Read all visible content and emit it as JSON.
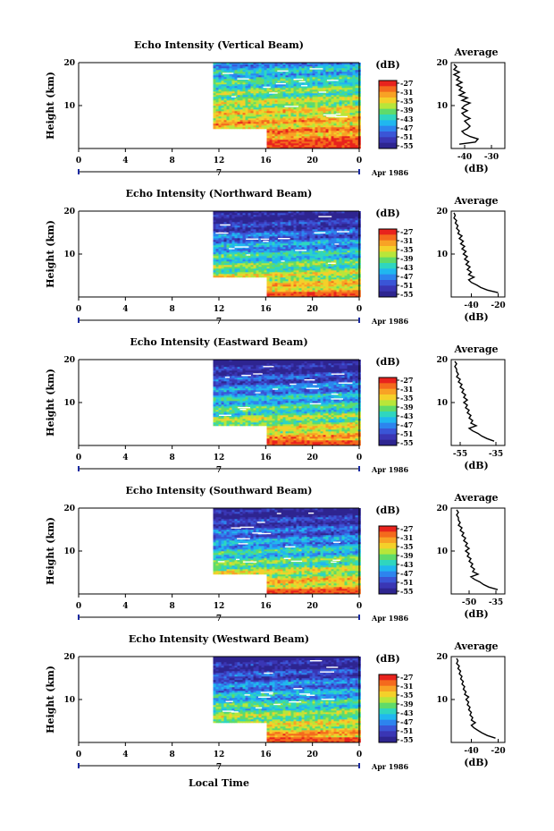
{
  "chart_data": [
    {
      "type": "heatmap",
      "title": "Echo Intensity (Vertical Beam)",
      "ylabel": "Height (km)",
      "yticks": [
        "20",
        "10"
      ],
      "ylim": [
        0,
        20
      ],
      "xticks": [
        "0",
        "4",
        "8",
        "12",
        "16",
        "20",
        "0"
      ],
      "xlim": [
        0,
        24
      ],
      "date_marker": "7",
      "date_label": "Apr 1986",
      "colorbar": {
        "unit": "(dB)",
        "ticks": [
          "-27",
          "-31",
          "-35",
          "-39",
          "-43",
          "-47",
          "-51",
          "-55"
        ]
      },
      "data_start_hour": 11.5,
      "profile": {
        "title": "Average",
        "xlabel": "(dB)",
        "xticks": [
          "-40",
          "-30"
        ],
        "xlim": [
          -45,
          -25
        ],
        "yticks": [
          "20",
          "10"
        ],
        "points": [
          [
            -42,
            1.0
          ],
          [
            -36,
            1.5
          ],
          [
            -35,
            2.2
          ],
          [
            -38,
            2.8
          ],
          [
            -40,
            3.4
          ],
          [
            -41,
            4.0
          ],
          [
            -39,
            4.6
          ],
          [
            -38,
            5.2
          ],
          [
            -39,
            5.8
          ],
          [
            -40,
            6.4
          ],
          [
            -38,
            7.0
          ],
          [
            -40,
            7.6
          ],
          [
            -41,
            8.2
          ],
          [
            -39,
            8.8
          ],
          [
            -41,
            9.4
          ],
          [
            -40,
            10.0
          ],
          [
            -38,
            10.6
          ],
          [
            -41,
            11.2
          ],
          [
            -39,
            11.8
          ],
          [
            -42,
            12.4
          ],
          [
            -40,
            13.0
          ],
          [
            -42,
            13.6
          ],
          [
            -41,
            14.2
          ],
          [
            -43,
            14.8
          ],
          [
            -41,
            15.4
          ],
          [
            -43,
            16.0
          ],
          [
            -42,
            16.6
          ],
          [
            -44,
            17.2
          ],
          [
            -42,
            17.8
          ],
          [
            -44,
            18.4
          ],
          [
            -43,
            19.0
          ],
          [
            -44,
            19.6
          ]
        ]
      }
    },
    {
      "type": "heatmap",
      "title": "Echo Intensity (Northward Beam)",
      "ylabel": "Height (km)",
      "yticks": [
        "20",
        "10"
      ],
      "ylim": [
        0,
        20
      ],
      "xticks": [
        "0",
        "4",
        "8",
        "12",
        "16",
        "20",
        "0"
      ],
      "xlim": [
        0,
        24
      ],
      "date_marker": "7",
      "date_label": "Apr 1986",
      "colorbar": {
        "unit": "(dB)",
        "ticks": [
          "-27",
          "-31",
          "-35",
          "-39",
          "-43",
          "-47",
          "-51",
          "-55"
        ]
      },
      "data_start_hour": 11.5,
      "profile": {
        "title": "Average",
        "xlabel": "(dB)",
        "xticks": [
          "-40",
          "-20"
        ],
        "xlim": [
          -55,
          -15
        ],
        "yticks": [
          "20",
          "10"
        ],
        "points": [
          [
            -20,
            1.0
          ],
          [
            -28,
            1.6
          ],
          [
            -33,
            2.2
          ],
          [
            -36,
            2.8
          ],
          [
            -40,
            3.4
          ],
          [
            -42,
            4.0
          ],
          [
            -38,
            4.6
          ],
          [
            -42,
            5.2
          ],
          [
            -40,
            5.8
          ],
          [
            -43,
            6.4
          ],
          [
            -41,
            7.0
          ],
          [
            -44,
            7.6
          ],
          [
            -42,
            8.2
          ],
          [
            -45,
            8.8
          ],
          [
            -43,
            9.4
          ],
          [
            -46,
            10.0
          ],
          [
            -44,
            10.6
          ],
          [
            -47,
            11.2
          ],
          [
            -45,
            11.8
          ],
          [
            -48,
            12.4
          ],
          [
            -46,
            13.0
          ],
          [
            -49,
            13.6
          ],
          [
            -47,
            14.2
          ],
          [
            -50,
            14.8
          ],
          [
            -49,
            15.4
          ],
          [
            -51,
            16.0
          ],
          [
            -50,
            16.6
          ],
          [
            -52,
            17.2
          ],
          [
            -51,
            17.8
          ],
          [
            -53,
            18.4
          ],
          [
            -52,
            19.0
          ],
          [
            -53,
            19.6
          ]
        ]
      }
    },
    {
      "type": "heatmap",
      "title": "Echo Intensity (Eastward Beam)",
      "ylabel": "Height (km)",
      "yticks": [
        "20",
        "10"
      ],
      "ylim": [
        0,
        20
      ],
      "xticks": [
        "0",
        "4",
        "8",
        "12",
        "16",
        "20",
        "0"
      ],
      "xlim": [
        0,
        24
      ],
      "date_marker": "7",
      "date_label": "Apr 1986",
      "colorbar": {
        "unit": "(dB)",
        "ticks": [
          "-27",
          "-31",
          "-35",
          "-39",
          "-43",
          "-47",
          "-51",
          "-55"
        ]
      },
      "data_start_hour": 11.5,
      "profile": {
        "title": "Average",
        "xlabel": "(dB)",
        "xticks": [
          "-55",
          "-35"
        ],
        "xlim": [
          -60,
          -30
        ],
        "yticks": [
          "20",
          "10"
        ],
        "points": [
          [
            -36,
            1.0
          ],
          [
            -40,
            1.6
          ],
          [
            -43,
            2.2
          ],
          [
            -45,
            2.8
          ],
          [
            -48,
            3.4
          ],
          [
            -50,
            4.0
          ],
          [
            -46,
            4.6
          ],
          [
            -49,
            5.2
          ],
          [
            -48,
            5.8
          ],
          [
            -50,
            6.4
          ],
          [
            -49,
            7.0
          ],
          [
            -51,
            7.6
          ],
          [
            -50,
            8.2
          ],
          [
            -52,
            8.8
          ],
          [
            -51,
            9.4
          ],
          [
            -53,
            10.0
          ],
          [
            -51,
            10.6
          ],
          [
            -53,
            11.2
          ],
          [
            -52,
            11.8
          ],
          [
            -54,
            12.4
          ],
          [
            -53,
            13.0
          ],
          [
            -55,
            13.6
          ],
          [
            -54,
            14.2
          ],
          [
            -56,
            14.8
          ],
          [
            -55,
            15.4
          ],
          [
            -57,
            16.0
          ],
          [
            -56,
            16.6
          ],
          [
            -57,
            17.2
          ],
          [
            -57,
            17.8
          ],
          [
            -58,
            18.4
          ],
          [
            -57,
            19.0
          ],
          [
            -58,
            19.6
          ]
        ]
      }
    },
    {
      "type": "heatmap",
      "title": "Echo Intensity (Southward Beam)",
      "ylabel": "Height (km)",
      "yticks": [
        "20",
        "10"
      ],
      "ylim": [
        0,
        20
      ],
      "xticks": [
        "0",
        "4",
        "8",
        "12",
        "16",
        "20",
        "0"
      ],
      "xlim": [
        0,
        24
      ],
      "date_marker": "7",
      "date_label": "Apr 1986",
      "colorbar": {
        "unit": "(dB)",
        "ticks": [
          "-27",
          "-31",
          "-35",
          "-39",
          "-43",
          "-47",
          "-51",
          "-55"
        ]
      },
      "data_start_hour": 11.5,
      "profile": {
        "title": "Average",
        "xlabel": "(dB)",
        "xticks": [
          "-50",
          "-35"
        ],
        "xlim": [
          -60,
          -30
        ],
        "yticks": [
          "20",
          "10"
        ],
        "points": [
          [
            -34,
            1.0
          ],
          [
            -39,
            1.6
          ],
          [
            -42,
            2.2
          ],
          [
            -44,
            2.8
          ],
          [
            -47,
            3.4
          ],
          [
            -49,
            4.0
          ],
          [
            -45,
            4.6
          ],
          [
            -48,
            5.2
          ],
          [
            -47,
            5.8
          ],
          [
            -49,
            6.4
          ],
          [
            -48,
            7.0
          ],
          [
            -50,
            7.6
          ],
          [
            -49,
            8.2
          ],
          [
            -51,
            8.8
          ],
          [
            -50,
            9.4
          ],
          [
            -52,
            10.0
          ],
          [
            -50,
            10.6
          ],
          [
            -52,
            11.2
          ],
          [
            -51,
            11.8
          ],
          [
            -53,
            12.4
          ],
          [
            -52,
            13.0
          ],
          [
            -54,
            13.6
          ],
          [
            -53,
            14.2
          ],
          [
            -55,
            14.8
          ],
          [
            -54,
            15.4
          ],
          [
            -56,
            16.0
          ],
          [
            -55,
            16.6
          ],
          [
            -56,
            17.2
          ],
          [
            -56,
            17.8
          ],
          [
            -57,
            18.4
          ],
          [
            -56,
            19.0
          ],
          [
            -57,
            19.6
          ]
        ]
      }
    },
    {
      "type": "heatmap",
      "title": "Echo Intensity (Westward Beam)",
      "ylabel": "Height (km)",
      "yticks": [
        "20",
        "10"
      ],
      "ylim": [
        0,
        20
      ],
      "xticks": [
        "0",
        "4",
        "8",
        "12",
        "16",
        "20",
        "0"
      ],
      "xlim": [
        0,
        24
      ],
      "date_marker": "7",
      "date_label": "Apr 1986",
      "colorbar": {
        "unit": "(dB)",
        "ticks": [
          "-27",
          "-31",
          "-35",
          "-39",
          "-43",
          "-47",
          "-51",
          "-55"
        ]
      },
      "data_start_hour": 11.5,
      "profile": {
        "title": "Average",
        "xlabel": "(dB)",
        "xticks": [
          "-40",
          "-20"
        ],
        "xlim": [
          -55,
          -15
        ],
        "yticks": [
          "20",
          "10"
        ],
        "points": [
          [
            -22,
            1.0
          ],
          [
            -28,
            1.6
          ],
          [
            -32,
            2.2
          ],
          [
            -35,
            2.8
          ],
          [
            -38,
            3.4
          ],
          [
            -40,
            4.0
          ],
          [
            -37,
            4.6
          ],
          [
            -40,
            5.2
          ],
          [
            -39,
            5.8
          ],
          [
            -41,
            6.4
          ],
          [
            -40,
            7.0
          ],
          [
            -42,
            7.6
          ],
          [
            -41,
            8.2
          ],
          [
            -43,
            8.8
          ],
          [
            -42,
            9.4
          ],
          [
            -44,
            10.0
          ],
          [
            -42,
            10.6
          ],
          [
            -45,
            11.2
          ],
          [
            -44,
            11.8
          ],
          [
            -46,
            12.4
          ],
          [
            -45,
            13.0
          ],
          [
            -47,
            13.6
          ],
          [
            -46,
            14.2
          ],
          [
            -48,
            14.8
          ],
          [
            -47,
            15.4
          ],
          [
            -49,
            16.0
          ],
          [
            -48,
            16.6
          ],
          [
            -50,
            17.2
          ],
          [
            -49,
            17.8
          ],
          [
            -51,
            18.4
          ],
          [
            -50,
            19.0
          ],
          [
            -51,
            19.6
          ]
        ]
      }
    }
  ],
  "figure": {
    "xlabel": "Local Time",
    "colormap": [
      "#e8231d",
      "#f46a1d",
      "#f8a225",
      "#f4d02a",
      "#b8e63a",
      "#5fdb6a",
      "#2fd6bf",
      "#20b7ef",
      "#2d84ee",
      "#3a55d6",
      "#3a36b4",
      "#2e2590"
    ]
  }
}
